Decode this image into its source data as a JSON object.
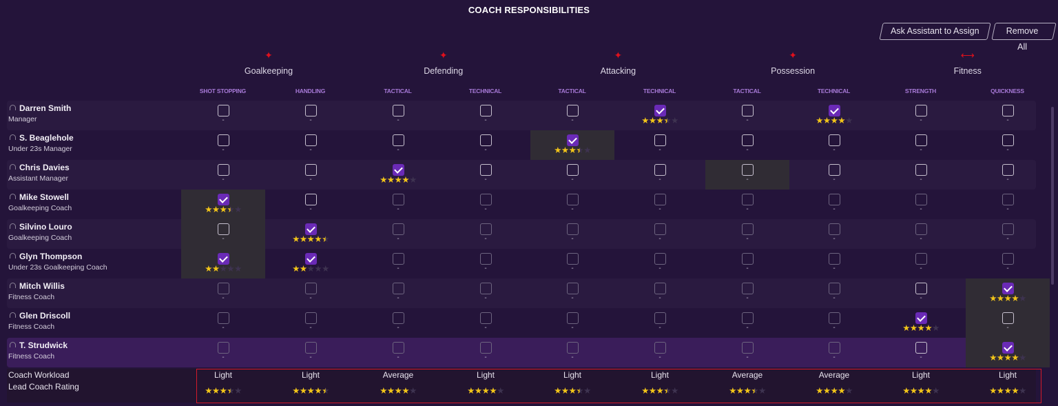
{
  "title": "COACH RESPONSIBILITIES",
  "buttons": {
    "ask_assistant": "Ask Assistant to Assign",
    "remove_all": "Remove All"
  },
  "categories": [
    {
      "label": "Goalkeeping",
      "icon": "goalkeeper-diving-icon",
      "glyph": "🏃"
    },
    {
      "label": "Defending",
      "icon": "slide-tackle-icon",
      "glyph": "🏃"
    },
    {
      "label": "Attacking",
      "icon": "running-player-icon",
      "glyph": "🏃"
    },
    {
      "label": "Possession",
      "icon": "player-with-ball-icon",
      "glyph": "🏃"
    },
    {
      "label": "Fitness",
      "icon": "dumbbell-icon",
      "glyph": "↔"
    }
  ],
  "columns": [
    "SHOT STOPPING",
    "HANDLING",
    "TACTICAL",
    "TECHNICAL",
    "TACTICAL",
    "TECHNICAL",
    "TACTICAL",
    "TECHNICAL",
    "STRENGTH",
    "QUICKNESS"
  ],
  "coaches": [
    {
      "name": "Darren Smith",
      "role": "Manager",
      "cells": [
        [
          0,
          null,
          0
        ],
        [
          0,
          null,
          0
        ],
        [
          0,
          null,
          0
        ],
        [
          0,
          null,
          0
        ],
        [
          0,
          null,
          0
        ],
        [
          1,
          3.5,
          0
        ],
        [
          0,
          null,
          0
        ],
        [
          1,
          4,
          0
        ],
        [
          0,
          null,
          0
        ],
        [
          0,
          null,
          0
        ]
      ]
    },
    {
      "name": "S. Beaglehole",
      "role": "Under 23s Manager",
      "cells": [
        [
          0,
          null,
          0
        ],
        [
          0,
          null,
          0
        ],
        [
          0,
          null,
          0
        ],
        [
          0,
          null,
          0
        ],
        [
          1,
          3.5,
          1
        ],
        [
          0,
          null,
          0
        ],
        [
          0,
          null,
          0
        ],
        [
          0,
          null,
          0
        ],
        [
          0,
          null,
          0
        ],
        [
          0,
          null,
          0
        ]
      ]
    },
    {
      "name": "Chris Davies",
      "role": "Assistant Manager",
      "cells": [
        [
          0,
          null,
          0
        ],
        [
          0,
          null,
          0
        ],
        [
          1,
          4,
          0
        ],
        [
          0,
          null,
          0
        ],
        [
          0,
          null,
          0
        ],
        [
          0,
          null,
          0
        ],
        [
          0,
          null,
          1
        ],
        [
          0,
          null,
          0
        ],
        [
          0,
          null,
          0
        ],
        [
          0,
          null,
          0
        ]
      ]
    },
    {
      "name": "Mike Stowell",
      "role": "Goalkeeping Coach",
      "cells": [
        [
          1,
          3.5,
          1
        ],
        [
          0,
          null,
          0
        ],
        [
          0,
          null,
          0
        ],
        [
          0,
          null,
          0
        ],
        [
          0,
          null,
          0
        ],
        [
          0,
          null,
          0
        ],
        [
          0,
          null,
          0
        ],
        [
          0,
          null,
          0
        ],
        [
          0,
          null,
          0
        ],
        [
          0,
          null,
          0
        ]
      ]
    },
    {
      "name": "Silvino Louro",
      "role": "Goalkeeping Coach",
      "cells": [
        [
          0,
          null,
          1
        ],
        [
          1,
          4.5,
          0
        ],
        [
          0,
          null,
          0
        ],
        [
          0,
          null,
          0
        ],
        [
          0,
          null,
          0
        ],
        [
          0,
          null,
          0
        ],
        [
          0,
          null,
          0
        ],
        [
          0,
          null,
          0
        ],
        [
          0,
          null,
          0
        ],
        [
          0,
          null,
          0
        ]
      ]
    },
    {
      "name": "Glyn Thompson",
      "role": "Under 23s Goalkeeping Coach",
      "cells": [
        [
          1,
          2,
          1
        ],
        [
          1,
          2,
          0
        ],
        [
          0,
          null,
          0
        ],
        [
          0,
          null,
          0
        ],
        [
          0,
          null,
          0
        ],
        [
          0,
          null,
          0
        ],
        [
          0,
          null,
          0
        ],
        [
          0,
          null,
          0
        ],
        [
          0,
          null,
          0
        ],
        [
          0,
          null,
          0
        ]
      ]
    },
    {
      "name": "Mitch Willis",
      "role": "Fitness Coach",
      "cells": [
        [
          0,
          null,
          0
        ],
        [
          0,
          null,
          0
        ],
        [
          0,
          null,
          0
        ],
        [
          0,
          null,
          0
        ],
        [
          0,
          null,
          0
        ],
        [
          0,
          null,
          0
        ],
        [
          0,
          null,
          0
        ],
        [
          0,
          null,
          0
        ],
        [
          0,
          null,
          0
        ],
        [
          1,
          4,
          1
        ]
      ]
    },
    {
      "name": "Glen Driscoll",
      "role": "Fitness Coach",
      "cells": [
        [
          0,
          null,
          0
        ],
        [
          0,
          null,
          0
        ],
        [
          0,
          null,
          0
        ],
        [
          0,
          null,
          0
        ],
        [
          0,
          null,
          0
        ],
        [
          0,
          null,
          0
        ],
        [
          0,
          null,
          0
        ],
        [
          0,
          null,
          0
        ],
        [
          1,
          4,
          0
        ],
        [
          0,
          null,
          1
        ]
      ]
    },
    {
      "name": "T. Strudwick",
      "role": "Fitness Coach",
      "selected": true,
      "cells": [
        [
          0,
          null,
          0
        ],
        [
          0,
          null,
          0
        ],
        [
          0,
          null,
          0
        ],
        [
          0,
          null,
          0
        ],
        [
          0,
          null,
          0
        ],
        [
          0,
          null,
          0
        ],
        [
          0,
          null,
          0
        ],
        [
          0,
          null,
          0
        ],
        [
          0,
          null,
          0
        ],
        [
          1,
          4,
          1
        ]
      ]
    }
  ],
  "footer": {
    "workload_label": "Coach Workload",
    "rating_label": "Lead Coach Rating",
    "workload": [
      "Light",
      "Light",
      "Average",
      "Light",
      "Light",
      "Light",
      "Average",
      "Average",
      "Light",
      "Light"
    ],
    "rating": [
      3.5,
      4.5,
      4,
      4,
      3.5,
      3.5,
      3.5,
      4,
      4,
      4
    ]
  },
  "colors": {
    "background": "#24143a",
    "accent_purple": "#6a2ab6",
    "star": "#f2c519",
    "highlight_box": "#d41a2a",
    "subheader": "#a87ad8",
    "icon_red": "#e0101c"
  }
}
